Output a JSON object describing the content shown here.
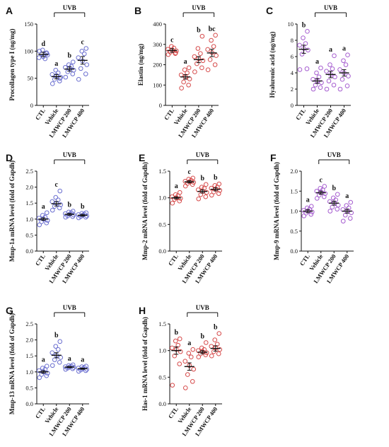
{
  "figure": {
    "bracket_label": "UVB",
    "categories": [
      "CTL",
      "Vehicle",
      "LMWCP 200",
      "LMWCP 400"
    ]
  },
  "chart_data": [
    {
      "panel": "A",
      "type": "scatter",
      "ylabel": "Procollagen type I (ng/mg)",
      "ylim": [
        0,
        150
      ],
      "yticks": [
        0,
        50,
        100,
        150
      ],
      "tick_decimals": 0,
      "color": "#6b6fd0",
      "means": [
        94,
        53,
        67,
        83
      ],
      "sem": [
        4,
        4,
        4,
        7
      ],
      "letters": [
        "d",
        "a",
        "b",
        "c"
      ],
      "points": [
        [
          100,
          97,
          95,
          93,
          90,
          88,
          86,
          102,
          96
        ],
        [
          40,
          45,
          48,
          52,
          55,
          57,
          60,
          65,
          50
        ],
        [
          52,
          58,
          62,
          65,
          68,
          70,
          72,
          75,
          80
        ],
        [
          48,
          58,
          68,
          75,
          82,
          88,
          95,
          100,
          105
        ]
      ]
    },
    {
      "panel": "B",
      "type": "scatter",
      "ylabel": "Elastin (ng/mg)",
      "ylim": [
        0,
        400
      ],
      "yticks": [
        0,
        100,
        200,
        300,
        400
      ],
      "tick_decimals": 0,
      "color": "#d64b4b",
      "means": [
        270,
        140,
        225,
        258
      ],
      "sem": [
        9,
        11,
        15,
        18
      ],
      "letters": [
        "c",
        "a",
        "b",
        "bc"
      ],
      "points": [
        [
          250,
          255,
          262,
          268,
          272,
          276,
          282,
          290,
          258
        ],
        [
          85,
          100,
          115,
          130,
          140,
          150,
          160,
          175,
          185
        ],
        [
          165,
          185,
          205,
          220,
          230,
          240,
          255,
          280,
          340
        ],
        [
          175,
          200,
          225,
          245,
          260,
          275,
          290,
          320,
          345
        ]
      ]
    },
    {
      "panel": "C",
      "type": "scatter",
      "ylabel": "Hyaluronic acid (ng/mg)",
      "ylim": [
        0,
        10
      ],
      "yticks": [
        0,
        2,
        4,
        6,
        8,
        10
      ],
      "tick_decimals": 0,
      "color": "#a65ed0",
      "means": [
        6.9,
        3.0,
        3.8,
        4.0
      ],
      "sem": [
        0.5,
        0.3,
        0.4,
        0.4
      ],
      "letters": [
        "b",
        "a",
        "a",
        "a"
      ],
      "points": [
        [
          4.4,
          4.5,
          6.3,
          6.8,
          7.0,
          7.4,
          7.6,
          8.3,
          9.1
        ],
        [
          2.0,
          2.2,
          2.5,
          2.8,
          3.0,
          3.2,
          3.5,
          4.0,
          4.6
        ],
        [
          2.0,
          2.5,
          3.0,
          3.5,
          3.8,
          4.2,
          4.5,
          5.0,
          6.1
        ],
        [
          2.0,
          2.4,
          3.2,
          3.6,
          4.0,
          4.4,
          5.0,
          5.5,
          6.2
        ]
      ]
    },
    {
      "panel": "D",
      "type": "scatter",
      "ylabel": "Mmp-1a mRNA level (fold of Gapdh)",
      "ylim": [
        0,
        2.5
      ],
      "yticks": [
        0,
        0.5,
        1.0,
        1.5,
        2.0,
        2.5
      ],
      "tick_decimals": 1,
      "color": "#6b6fd0",
      "means": [
        1.0,
        1.48,
        1.15,
        1.12
      ],
      "sem": [
        0.04,
        0.07,
        0.03,
        0.03
      ],
      "letters": [
        "a",
        "c",
        "b",
        "b"
      ],
      "points": [
        [
          0.82,
          0.88,
          0.92,
          0.96,
          1.0,
          1.03,
          1.06,
          1.12,
          1.2
        ],
        [
          1.28,
          1.35,
          1.4,
          1.45,
          1.5,
          1.55,
          1.6,
          1.68,
          1.88
        ],
        [
          1.06,
          1.08,
          1.1,
          1.13,
          1.15,
          1.17,
          1.2,
          1.22,
          1.25
        ],
        [
          1.04,
          1.06,
          1.08,
          1.1,
          1.12,
          1.14,
          1.16,
          1.18,
          1.2
        ]
      ]
    },
    {
      "panel": "E",
      "type": "scatter",
      "ylabel": "Mmp-2 mRNA level (fold of Gapdh)",
      "ylim": [
        0,
        1.5
      ],
      "yticks": [
        0,
        0.5,
        1.0,
        1.5
      ],
      "tick_decimals": 1,
      "color": "#d64b4b",
      "means": [
        1.0,
        1.3,
        1.12,
        1.16
      ],
      "sem": [
        0.02,
        0.02,
        0.03,
        0.03
      ],
      "letters": [
        "a",
        "c",
        "b",
        "b"
      ],
      "points": [
        [
          0.9,
          0.94,
          0.97,
          0.99,
          1.0,
          1.02,
          1.04,
          1.06,
          1.1
        ],
        [
          1.22,
          1.25,
          1.27,
          1.29,
          1.3,
          1.31,
          1.33,
          1.35,
          1.37
        ],
        [
          0.98,
          1.02,
          1.06,
          1.1,
          1.12,
          1.15,
          1.18,
          1.2,
          1.25
        ],
        [
          1.05,
          1.08,
          1.11,
          1.14,
          1.16,
          1.18,
          1.2,
          1.23,
          1.26
        ]
      ]
    },
    {
      "panel": "F",
      "type": "scatter",
      "ylabel": "Mmp-9 mRNA level (fold of Gapdh)",
      "ylim": [
        0,
        2.0
      ],
      "yticks": [
        0,
        0.5,
        1.0,
        1.5,
        2.0
      ],
      "tick_decimals": 1,
      "color": "#a65ed0",
      "means": [
        1.0,
        1.46,
        1.2,
        1.0
      ],
      "sem": [
        0.04,
        0.04,
        0.05,
        0.05
      ],
      "letters": [
        "a",
        "c",
        "b",
        "a"
      ],
      "points": [
        [
          0.88,
          0.92,
          0.95,
          0.98,
          1.0,
          1.02,
          1.05,
          1.08,
          1.12
        ],
        [
          1.32,
          1.36,
          1.4,
          1.44,
          1.47,
          1.5,
          1.53,
          1.57,
          1.62
        ],
        [
          1.0,
          1.05,
          1.1,
          1.15,
          1.2,
          1.24,
          1.28,
          1.33,
          1.42
        ],
        [
          0.75,
          0.82,
          0.9,
          0.96,
          1.0,
          1.04,
          1.08,
          1.14,
          1.22
        ]
      ]
    },
    {
      "panel": "G",
      "type": "scatter",
      "ylabel": "Mmp-13 mRNA level (fold of Gapdh)",
      "ylim": [
        0,
        2.5
      ],
      "yticks": [
        0,
        0.5,
        1.0,
        1.5,
        2.0,
        2.5
      ],
      "tick_decimals": 1,
      "color": "#6b6fd0",
      "means": [
        1.0,
        1.52,
        1.15,
        1.1
      ],
      "sem": [
        0.04,
        0.08,
        0.02,
        0.02
      ],
      "letters": [
        "a",
        "b",
        "a",
        "a"
      ],
      "points": [
        [
          0.82,
          0.88,
          0.92,
          0.96,
          1.0,
          1.04,
          1.08,
          1.12,
          1.18
        ],
        [
          1.2,
          1.3,
          1.38,
          1.45,
          1.52,
          1.6,
          1.7,
          1.8,
          1.95
        ],
        [
          1.08,
          1.1,
          1.12,
          1.14,
          1.15,
          1.16,
          1.18,
          1.2,
          1.22
        ],
        [
          1.02,
          1.04,
          1.06,
          1.08,
          1.1,
          1.12,
          1.14,
          1.16,
          1.18
        ]
      ]
    },
    {
      "panel": "H",
      "type": "scatter",
      "ylabel": "Has-1 mRNA level (fold of Gapdh)",
      "ylim": [
        0,
        1.5
      ],
      "yticks": [
        0,
        0.5,
        1.0,
        1.5
      ],
      "tick_decimals": 1,
      "color": "#d64b4b",
      "means": [
        1.0,
        0.7,
        0.97,
        1.04
      ],
      "sem": [
        0.07,
        0.07,
        0.03,
        0.05
      ],
      "letters": [
        "b",
        "a",
        "b",
        "b"
      ],
      "points": [
        [
          0.35,
          0.75,
          0.9,
          0.98,
          1.02,
          1.05,
          1.1,
          1.18,
          1.22
        ],
        [
          0.3,
          0.42,
          0.55,
          0.65,
          0.72,
          0.8,
          0.88,
          0.95,
          1.02
        ],
        [
          0.88,
          0.92,
          0.94,
          0.96,
          0.98,
          1.0,
          1.02,
          1.05,
          1.15
        ],
        [
          0.9,
          0.94,
          0.98,
          1.02,
          1.05,
          1.08,
          1.12,
          1.2,
          1.32
        ]
      ]
    }
  ]
}
